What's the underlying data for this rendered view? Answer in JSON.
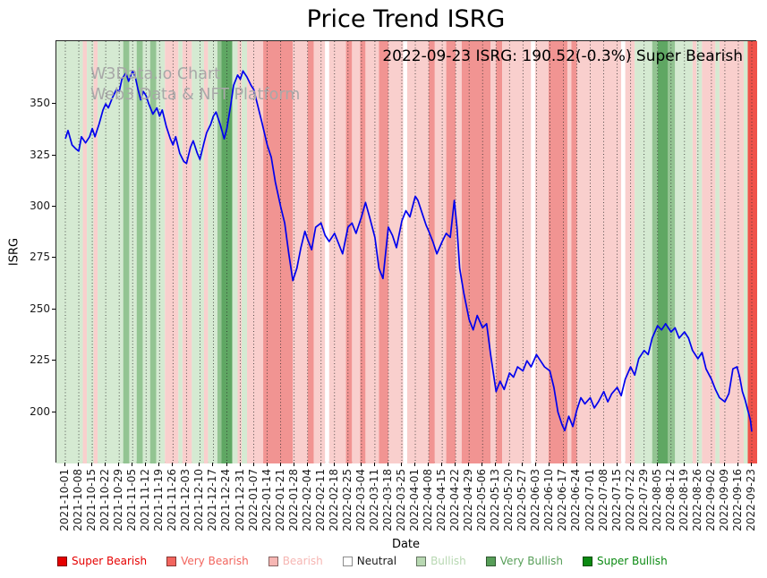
{
  "title": "Price Trend ISRG",
  "annotation": "2022-09-23 ISRG: 190.52(-0.3%) Super Bearish",
  "watermark": {
    "line1": "W3Data.io Chart",
    "line2": "Web3 Data & NFT Platform"
  },
  "chart_data": {
    "type": "line",
    "title": "Price Trend ISRG",
    "xlabel": "Date",
    "ylabel": "ISRG",
    "ylim": [
      175,
      380.5
    ],
    "y_ticks": [
      350,
      325,
      300,
      275,
      250,
      225,
      200
    ],
    "grid": "vertical-dotted-weekly",
    "legend_position": "bottom",
    "x_ticks": [
      "2021-10-01",
      "2021-10-08",
      "2021-10-15",
      "2021-10-22",
      "2021-10-29",
      "2021-11-05",
      "2021-11-12",
      "2021-11-19",
      "2021-11-26",
      "2021-12-03",
      "2021-12-10",
      "2021-12-17",
      "2021-12-24",
      "2021-12-31",
      "2022-01-07",
      "2022-01-14",
      "2022-01-21",
      "2022-01-28",
      "2022-02-04",
      "2022-02-11",
      "2022-02-18",
      "2022-02-25",
      "2022-03-04",
      "2022-03-11",
      "2022-03-18",
      "2022-03-25",
      "2022-04-01",
      "2022-04-08",
      "2022-04-15",
      "2022-04-22",
      "2022-04-29",
      "2022-05-06",
      "2022-05-13",
      "2022-05-20",
      "2022-05-27",
      "2022-06-03",
      "2022-06-10",
      "2022-06-17",
      "2022-06-24",
      "2022-07-01",
      "2022-07-08",
      "2022-07-15",
      "2022-07-22",
      "2022-07-29",
      "2022-08-05",
      "2022-08-12",
      "2022-08-19",
      "2022-08-26",
      "2022-09-02",
      "2022-09-09",
      "2022-09-16",
      "2022-09-23"
    ],
    "series": [
      {
        "name": "ISRG",
        "color": "#0000ee",
        "points": [
          [
            0,
            333
          ],
          [
            0.2,
            337
          ],
          [
            0.5,
            330
          ],
          [
            0.8,
            328
          ],
          [
            1,
            327
          ],
          [
            1.2,
            334
          ],
          [
            1.5,
            331
          ],
          [
            1.8,
            334
          ],
          [
            2,
            338
          ],
          [
            2.2,
            334
          ],
          [
            2.5,
            340
          ],
          [
            2.8,
            347
          ],
          [
            3,
            350
          ],
          [
            3.2,
            348
          ],
          [
            3.5,
            353
          ],
          [
            3.8,
            357
          ],
          [
            4,
            356
          ],
          [
            4.2,
            362
          ],
          [
            4.5,
            365
          ],
          [
            4.7,
            361
          ],
          [
            5,
            366
          ],
          [
            5.2,
            363
          ],
          [
            5.4,
            357
          ],
          [
            5.6,
            352
          ],
          [
            5.8,
            356
          ],
          [
            6,
            354
          ],
          [
            6.2,
            350
          ],
          [
            6.5,
            345
          ],
          [
            6.8,
            348
          ],
          [
            7,
            344
          ],
          [
            7.2,
            347
          ],
          [
            7.5,
            339
          ],
          [
            7.8,
            333
          ],
          [
            8,
            330
          ],
          [
            8.2,
            334
          ],
          [
            8.5,
            326
          ],
          [
            8.8,
            322
          ],
          [
            9,
            321
          ],
          [
            9.3,
            329
          ],
          [
            9.5,
            332
          ],
          [
            9.8,
            326
          ],
          [
            10,
            323
          ],
          [
            10.3,
            331
          ],
          [
            10.5,
            336
          ],
          [
            10.8,
            340
          ],
          [
            11,
            344
          ],
          [
            11.2,
            346
          ],
          [
            11.5,
            340
          ],
          [
            11.8,
            333
          ],
          [
            12,
            338
          ],
          [
            12.3,
            350
          ],
          [
            12.5,
            359
          ],
          [
            12.8,
            364
          ],
          [
            13,
            362
          ],
          [
            13.2,
            366
          ],
          [
            13.5,
            363
          ],
          [
            13.8,
            359
          ],
          [
            14,
            357
          ],
          [
            14.3,
            349
          ],
          [
            14.6,
            341
          ],
          [
            15,
            330
          ],
          [
            15.3,
            324
          ],
          [
            15.6,
            312
          ],
          [
            16,
            300
          ],
          [
            16.3,
            292
          ],
          [
            16.6,
            277
          ],
          [
            16.9,
            264
          ],
          [
            17.2,
            270
          ],
          [
            17.5,
            280
          ],
          [
            17.8,
            288
          ],
          [
            18,
            284
          ],
          [
            18.3,
            279
          ],
          [
            18.6,
            290
          ],
          [
            19,
            292
          ],
          [
            19.3,
            286
          ],
          [
            19.6,
            283
          ],
          [
            20,
            287
          ],
          [
            20.3,
            282
          ],
          [
            20.6,
            277
          ],
          [
            21,
            290
          ],
          [
            21.3,
            292
          ],
          [
            21.6,
            287
          ],
          [
            22,
            295
          ],
          [
            22.3,
            302
          ],
          [
            22.6,
            295
          ],
          [
            23,
            285
          ],
          [
            23.3,
            270
          ],
          [
            23.6,
            265
          ],
          [
            24,
            290
          ],
          [
            24.3,
            286
          ],
          [
            24.6,
            280
          ],
          [
            25,
            293
          ],
          [
            25.3,
            298
          ],
          [
            25.6,
            295
          ],
          [
            26,
            305
          ],
          [
            26.2,
            303
          ],
          [
            26.5,
            297
          ],
          [
            26.8,
            291
          ],
          [
            27,
            288
          ],
          [
            27.3,
            283
          ],
          [
            27.6,
            277
          ],
          [
            28,
            283
          ],
          [
            28.3,
            287
          ],
          [
            28.6,
            285
          ],
          [
            28.9,
            303
          ],
          [
            29.1,
            290
          ],
          [
            29.3,
            270
          ],
          [
            29.6,
            258
          ],
          [
            30,
            245
          ],
          [
            30.3,
            240
          ],
          [
            30.6,
            247
          ],
          [
            31,
            241
          ],
          [
            31.3,
            243
          ],
          [
            31.6,
            228
          ],
          [
            32,
            210
          ],
          [
            32.3,
            215
          ],
          [
            32.6,
            211
          ],
          [
            33,
            219
          ],
          [
            33.3,
            217
          ],
          [
            33.6,
            222
          ],
          [
            34,
            220
          ],
          [
            34.3,
            225
          ],
          [
            34.6,
            222
          ],
          [
            35,
            228
          ],
          [
            35.3,
            225
          ],
          [
            35.6,
            222
          ],
          [
            36,
            220
          ],
          [
            36.3,
            212
          ],
          [
            36.6,
            200
          ],
          [
            36.9,
            194
          ],
          [
            37.1,
            191
          ],
          [
            37.4,
            198
          ],
          [
            37.7,
            193
          ],
          [
            38,
            201
          ],
          [
            38.3,
            207
          ],
          [
            38.6,
            204
          ],
          [
            39,
            207
          ],
          [
            39.3,
            202
          ],
          [
            39.6,
            205
          ],
          [
            40,
            210
          ],
          [
            40.3,
            205
          ],
          [
            40.6,
            209
          ],
          [
            41,
            212
          ],
          [
            41.3,
            208
          ],
          [
            41.6,
            216
          ],
          [
            42,
            222
          ],
          [
            42.3,
            218
          ],
          [
            42.6,
            226
          ],
          [
            43,
            230
          ],
          [
            43.3,
            228
          ],
          [
            43.6,
            236
          ],
          [
            44,
            242
          ],
          [
            44.3,
            240
          ],
          [
            44.6,
            243
          ],
          [
            45,
            239
          ],
          [
            45.3,
            241
          ],
          [
            45.6,
            236
          ],
          [
            46,
            239
          ],
          [
            46.3,
            236
          ],
          [
            46.6,
            230
          ],
          [
            47,
            226
          ],
          [
            47.3,
            229
          ],
          [
            47.6,
            221
          ],
          [
            48,
            216
          ],
          [
            48.3,
            211
          ],
          [
            48.6,
            207
          ],
          [
            49,
            205
          ],
          [
            49.3,
            209
          ],
          [
            49.6,
            221
          ],
          [
            49.9,
            222
          ],
          [
            50.1,
            217
          ],
          [
            50.3,
            210
          ],
          [
            50.5,
            206
          ],
          [
            50.7,
            201
          ],
          [
            50.9,
            196
          ],
          [
            51,
            190.52
          ]
        ]
      }
    ],
    "band_colors": {
      "super_bearish": "#f0524a",
      "very_bearish": "#f19492",
      "bearish": "#f9cfcd",
      "neutral": "#ffffff",
      "bullish": "#d5ead2",
      "very_bullish": "#93c492",
      "super_bullish": "#5fa763"
    },
    "bands": [
      [
        0,
        1.3,
        "bullish"
      ],
      [
        1.3,
        1.6,
        "bearish"
      ],
      [
        1.6,
        2.1,
        "bullish"
      ],
      [
        2.1,
        2.4,
        "bearish"
      ],
      [
        2.4,
        4.3,
        "bullish"
      ],
      [
        4.3,
        4.75,
        "very_bullish"
      ],
      [
        4.75,
        5.3,
        "bullish"
      ],
      [
        5.3,
        5.75,
        "very_bullish"
      ],
      [
        5.75,
        6.3,
        "bullish"
      ],
      [
        6.3,
        6.75,
        "very_bullish"
      ],
      [
        6.75,
        7.4,
        "bullish"
      ],
      [
        7.4,
        8.4,
        "bearish"
      ],
      [
        8.4,
        8.7,
        "bullish"
      ],
      [
        8.7,
        9.4,
        "bearish"
      ],
      [
        9.4,
        10.3,
        "bullish"
      ],
      [
        10.3,
        10.6,
        "bearish"
      ],
      [
        10.6,
        11.3,
        "bullish"
      ],
      [
        11.3,
        11.6,
        "very_bullish"
      ],
      [
        11.6,
        12.4,
        "super_bullish"
      ],
      [
        12.4,
        12.8,
        "bullish"
      ],
      [
        12.8,
        13.1,
        "bearish"
      ],
      [
        13.1,
        13.5,
        "bullish"
      ],
      [
        13.5,
        14.7,
        "bearish"
      ],
      [
        14.7,
        16.9,
        "very_bearish"
      ],
      [
        16.9,
        18,
        "bearish"
      ],
      [
        18,
        18.45,
        "very_bearish"
      ],
      [
        18.45,
        19.3,
        "bearish"
      ],
      [
        19.3,
        19.6,
        "neutral"
      ],
      [
        19.6,
        20.85,
        "bearish"
      ],
      [
        20.85,
        21.3,
        "very_bearish"
      ],
      [
        21.3,
        21.9,
        "bearish"
      ],
      [
        21.9,
        22.3,
        "very_bearish"
      ],
      [
        22.3,
        23.3,
        "bearish"
      ],
      [
        23.3,
        24,
        "very_bearish"
      ],
      [
        24,
        25.1,
        "bearish"
      ],
      [
        25.1,
        25.4,
        "neutral"
      ],
      [
        25.4,
        27,
        "bearish"
      ],
      [
        27,
        27.45,
        "very_bearish"
      ],
      [
        27.45,
        28.3,
        "bearish"
      ],
      [
        28.3,
        29,
        "very_bearish"
      ],
      [
        29,
        29.45,
        "bearish"
      ],
      [
        29.45,
        31.6,
        "very_bearish"
      ],
      [
        31.6,
        32,
        "bearish"
      ],
      [
        32,
        32.45,
        "very_bearish"
      ],
      [
        32.45,
        34.6,
        "bearish"
      ],
      [
        34.6,
        34.9,
        "neutral"
      ],
      [
        34.9,
        35.9,
        "bearish"
      ],
      [
        35.9,
        37.3,
        "very_bearish"
      ],
      [
        37.3,
        37.6,
        "bearish"
      ],
      [
        37.6,
        38,
        "very_bearish"
      ],
      [
        38,
        41.3,
        "bearish"
      ],
      [
        41.3,
        41.6,
        "neutral"
      ],
      [
        41.6,
        42.3,
        "bearish"
      ],
      [
        42.3,
        43.6,
        "bullish"
      ],
      [
        43.6,
        44,
        "very_bullish"
      ],
      [
        44,
        44.75,
        "super_bullish"
      ],
      [
        44.75,
        45.3,
        "very_bullish"
      ],
      [
        45.3,
        46.6,
        "bullish"
      ],
      [
        46.6,
        46.9,
        "bearish"
      ],
      [
        46.9,
        47.3,
        "bullish"
      ],
      [
        47.3,
        48.3,
        "bearish"
      ],
      [
        48.3,
        48.6,
        "bullish"
      ],
      [
        48.6,
        50.4,
        "bearish"
      ],
      [
        50.4,
        50.7,
        "bullish"
      ],
      [
        50.7,
        51,
        "super_bearish"
      ]
    ],
    "legend": [
      {
        "label": "Super Bearish",
        "color": "#e50000",
        "text_color": "#e50000"
      },
      {
        "label": "Very Bearish",
        "color": "#f2655e",
        "text_color": "#f2655e"
      },
      {
        "label": "Bearish",
        "color": "#f6b6b3",
        "text_color": "#f6b6b3"
      },
      {
        "label": "Neutral",
        "color": "#ffffff",
        "text_color": "#1a1a1a"
      },
      {
        "label": "Bullish",
        "color": "#b8d8b2",
        "text_color": "#b8d8b2"
      },
      {
        "label": "Very Bullish",
        "color": "#579e58",
        "text_color": "#579e58"
      },
      {
        "label": "Super Bullish",
        "color": "#0b8a12",
        "text_color": "#0b8a12"
      }
    ]
  }
}
